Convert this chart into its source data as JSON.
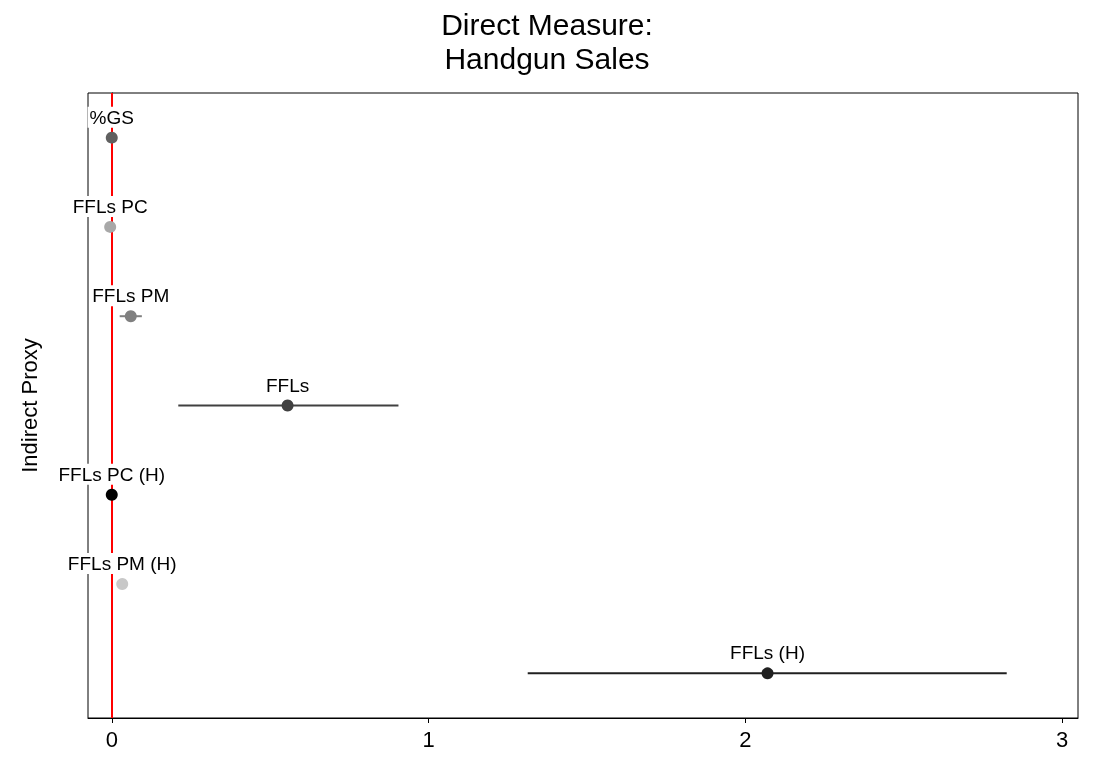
{
  "chart_data": {
    "type": "scatter",
    "orientation": "horizontal",
    "title": "Direct Measure:\nHandgun Sales",
    "ylabel": "Indirect Proxy",
    "categories": [
      "%GS",
      "FFLs PC",
      "FFLs PM",
      "FFLs",
      "FFLs PC (H)",
      "FFLs PM (H)",
      "FFLs (H)"
    ],
    "values": [
      0.0,
      -0.005,
      0.06,
      0.555,
      0.0,
      0.033,
      2.07
    ],
    "errors": [
      null,
      null,
      [
        0.025,
        0.095
      ],
      [
        0.21,
        0.905
      ],
      null,
      null,
      [
        1.313,
        2.825
      ]
    ],
    "colors": [
      "#606060",
      "#a8a8a8",
      "#808080",
      "#404040",
      "#000000",
      "#c8c8c8",
      "#202020"
    ],
    "xlim": [
      -0.075,
      3.05
    ],
    "xticks": [
      0,
      1,
      2,
      3
    ],
    "tick_labels": "x",
    "marker": "circle",
    "grid": false,
    "ref_lines": [
      {
        "axis": "x",
        "value": 0,
        "color": "#ff0000"
      }
    ]
  }
}
